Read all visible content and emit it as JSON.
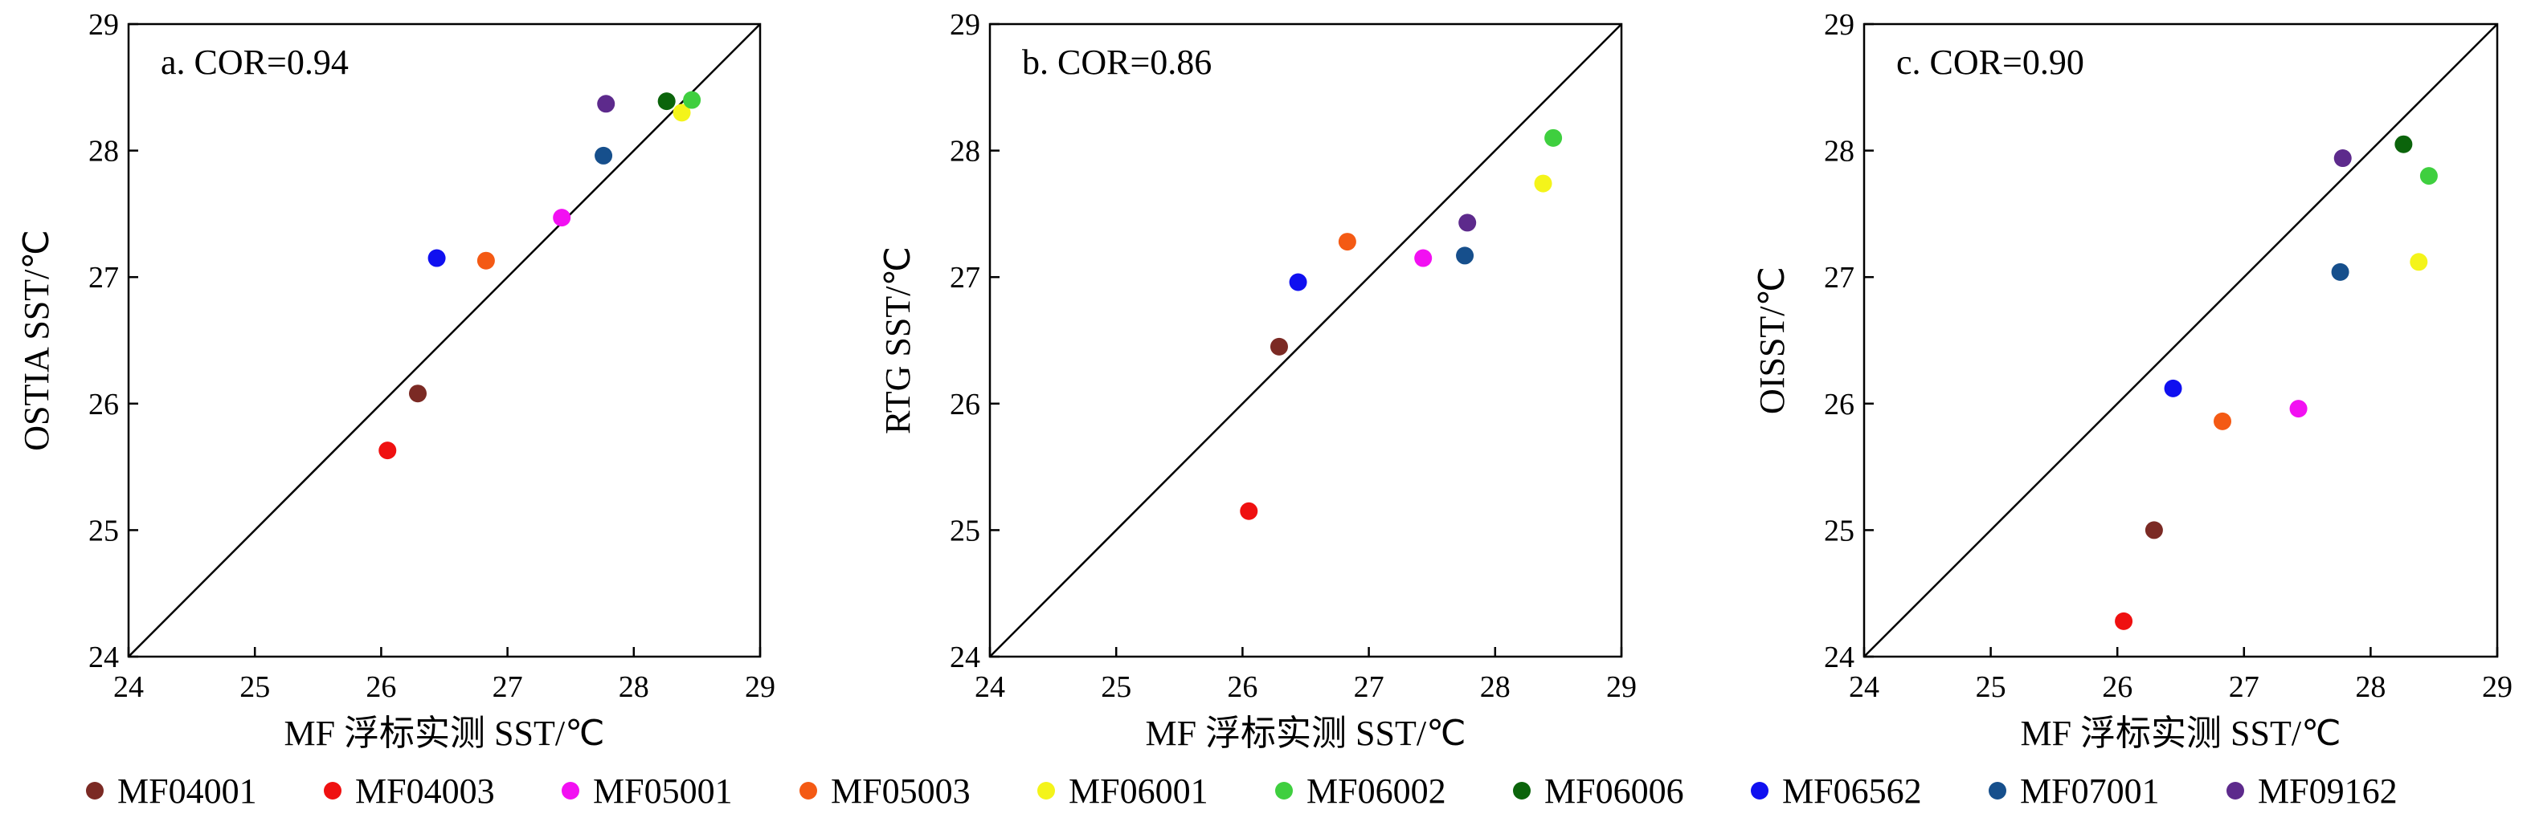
{
  "legend": [
    {
      "name": "MF04001",
      "color": "#7b2a24"
    },
    {
      "name": "MF04003",
      "color": "#ef1010"
    },
    {
      "name": "MF05001",
      "color": "#f210f2"
    },
    {
      "name": "MF05003",
      "color": "#f45a14"
    },
    {
      "name": "MF06001",
      "color": "#f4f41a"
    },
    {
      "name": "MF06002",
      "color": "#3fcf3f"
    },
    {
      "name": "MF06006",
      "color": "#0b640b"
    },
    {
      "name": "MF06562",
      "color": "#1010f0"
    },
    {
      "name": "MF07001",
      "color": "#164f8c"
    },
    {
      "name": "MF09162",
      "color": "#5d2a8c"
    }
  ],
  "chart_data": [
    {
      "type": "scatter",
      "annotation": "a. COR=0.94",
      "xlabel": "MF 浮标实测 SST/℃",
      "ylabel": "OSTIA SST/℃",
      "xlim": [
        24,
        29
      ],
      "ylim": [
        24,
        29
      ],
      "xticks": [
        "24",
        "25",
        "26",
        "27",
        "28",
        "29"
      ],
      "yticks": [
        "24",
        "25",
        "26",
        "27",
        "28",
        "29"
      ],
      "reference_line": "y=x",
      "points": [
        {
          "series": "MF04001",
          "x": 26.29,
          "y": 26.08
        },
        {
          "series": "MF04003",
          "x": 26.05,
          "y": 25.63
        },
        {
          "series": "MF05001",
          "x": 27.43,
          "y": 27.47
        },
        {
          "series": "MF05003",
          "x": 26.83,
          "y": 27.13
        },
        {
          "series": "MF06001",
          "x": 28.38,
          "y": 28.3
        },
        {
          "series": "MF06002",
          "x": 28.46,
          "y": 28.4
        },
        {
          "series": "MF06006",
          "x": 28.26,
          "y": 28.39
        },
        {
          "series": "MF06562",
          "x": 26.44,
          "y": 27.15
        },
        {
          "series": "MF07001",
          "x": 27.76,
          "y": 27.96
        },
        {
          "series": "MF09162",
          "x": 27.78,
          "y": 28.37
        }
      ]
    },
    {
      "type": "scatter",
      "annotation": "b. COR=0.86",
      "xlabel": "MF 浮标实测 SST/℃",
      "ylabel": "RTG SST/℃",
      "xlim": [
        24,
        29
      ],
      "ylim": [
        24,
        29
      ],
      "xticks": [
        "24",
        "25",
        "26",
        "27",
        "28",
        "29"
      ],
      "yticks": [
        "24",
        "25",
        "26",
        "27",
        "28",
        "29"
      ],
      "reference_line": "y=x",
      "points": [
        {
          "series": "MF04001",
          "x": 26.29,
          "y": 26.45
        },
        {
          "series": "MF04003",
          "x": 26.05,
          "y": 25.15
        },
        {
          "series": "MF05001",
          "x": 27.43,
          "y": 27.15
        },
        {
          "series": "MF05003",
          "x": 26.83,
          "y": 27.28
        },
        {
          "series": "MF06001",
          "x": 28.38,
          "y": 27.74
        },
        {
          "series": "MF06002",
          "x": 28.46,
          "y": 28.1
        },
        {
          "series": "MF06562",
          "x": 26.44,
          "y": 26.96
        },
        {
          "series": "MF07001",
          "x": 27.76,
          "y": 27.17
        },
        {
          "series": "MF09162",
          "x": 27.78,
          "y": 27.43
        }
      ]
    },
    {
      "type": "scatter",
      "annotation": "c. COR=0.90",
      "xlabel": "MF 浮标实测 SST/℃",
      "ylabel": "OISST/℃",
      "xlim": [
        24,
        29
      ],
      "ylim": [
        24,
        29
      ],
      "xticks": [
        "24",
        "25",
        "26",
        "27",
        "28",
        "29"
      ],
      "yticks": [
        "24",
        "25",
        "26",
        "27",
        "28",
        "29"
      ],
      "reference_line": "y=x",
      "points": [
        {
          "series": "MF04001",
          "x": 26.29,
          "y": 25.0
        },
        {
          "series": "MF04003",
          "x": 26.05,
          "y": 24.28
        },
        {
          "series": "MF05001",
          "x": 27.43,
          "y": 25.96
        },
        {
          "series": "MF05003",
          "x": 26.83,
          "y": 25.86
        },
        {
          "series": "MF06001",
          "x": 28.38,
          "y": 27.12
        },
        {
          "series": "MF06002",
          "x": 28.46,
          "y": 27.8
        },
        {
          "series": "MF06006",
          "x": 28.26,
          "y": 28.05
        },
        {
          "series": "MF06562",
          "x": 26.44,
          "y": 26.12
        },
        {
          "series": "MF07001",
          "x": 27.76,
          "y": 27.04
        },
        {
          "series": "MF09162",
          "x": 27.78,
          "y": 27.94
        }
      ]
    }
  ]
}
